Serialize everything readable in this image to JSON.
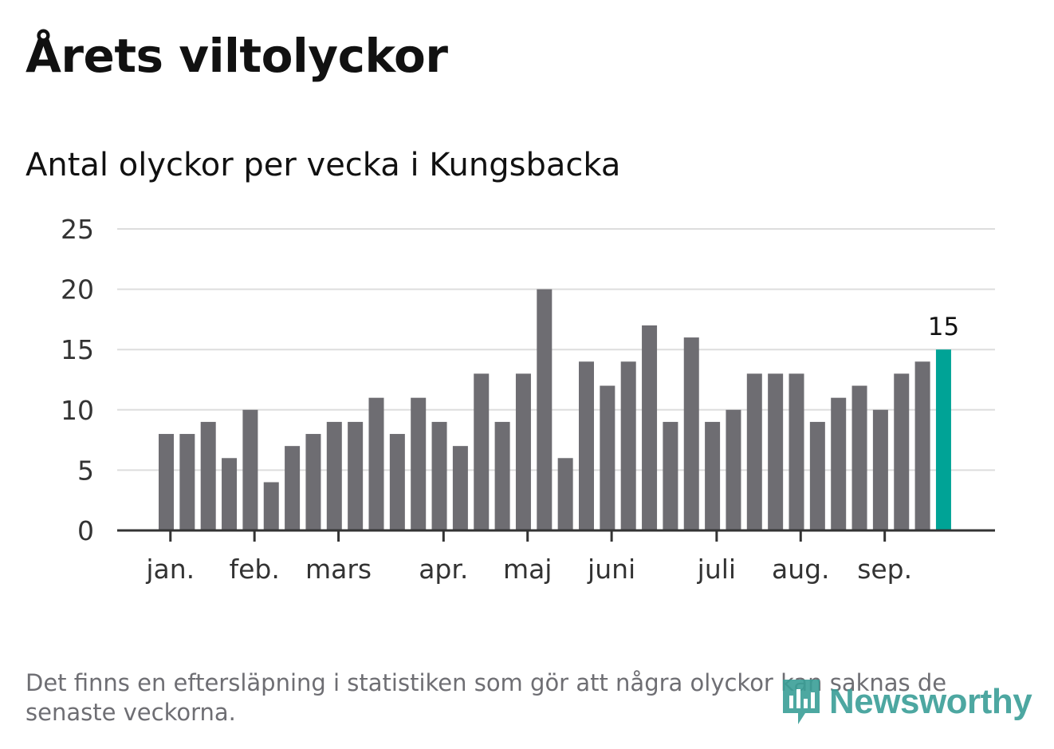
{
  "header": {
    "title": "Årets viltolyckor",
    "subtitle": "Antal olyckor per vecka i Kungsbacka"
  },
  "footnote": "Det finns en eftersläpning i statistiken som gör att några olyckor kan saknas de senaste veckorna.",
  "brand": {
    "name": "Newsworthy",
    "color": "#3a9e97"
  },
  "colors": {
    "bar": "#6e6d72",
    "highlight": "#00a396",
    "grid": "#dddddd",
    "axis": "#333333"
  },
  "chart_data": {
    "type": "bar",
    "title": "Antal olyckor per vecka i Kungsbacka",
    "xlabel": "",
    "ylabel": "",
    "ylim": [
      0,
      25
    ],
    "yticks": [
      0,
      5,
      10,
      15,
      20,
      25
    ],
    "grid": true,
    "values": [
      8,
      8,
      9,
      6,
      10,
      4,
      7,
      8,
      9,
      9,
      11,
      8,
      11,
      9,
      7,
      13,
      9,
      13,
      20,
      6,
      14,
      12,
      14,
      17,
      9,
      16,
      9,
      10,
      13,
      13,
      13,
      9,
      11,
      12,
      10,
      13,
      14,
      15
    ],
    "highlight_index": 37,
    "highlight_label": "15",
    "month_ticks": [
      {
        "label": "jan.",
        "week_index": 0.2
      },
      {
        "label": "feb.",
        "week_index": 4.2
      },
      {
        "label": "mars",
        "week_index": 8.2
      },
      {
        "label": "apr.",
        "week_index": 13.2
      },
      {
        "label": "maj",
        "week_index": 17.2
      },
      {
        "label": "juni",
        "week_index": 21.2
      },
      {
        "label": "juli",
        "week_index": 26.2
      },
      {
        "label": "aug.",
        "week_index": 30.2
      },
      {
        "label": "sep.",
        "week_index": 34.2
      }
    ]
  }
}
